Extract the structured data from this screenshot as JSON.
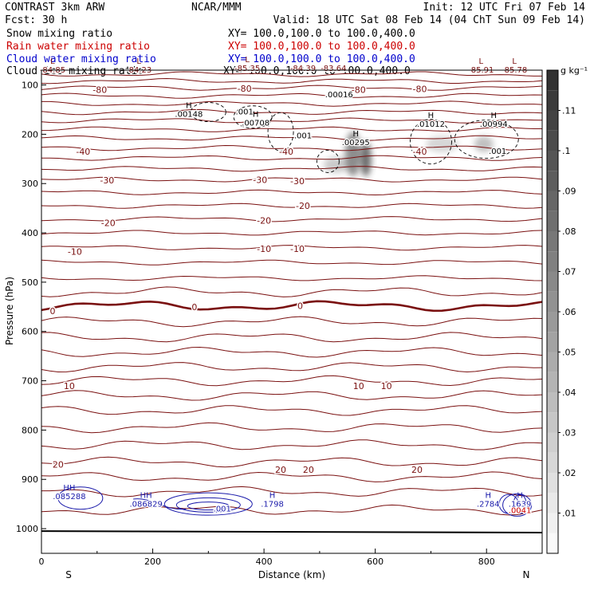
{
  "header": {
    "left1": "CONTRAST  3km ARW",
    "center1": "NCAR/MMM",
    "right1": "Init: 12 UTC Fri 07 Feb 14",
    "left2": "Fcst:   30 h",
    "right2": "Valid: 18 UTC Sat 08 Feb 14 (04 ChT Sun 09 Feb 14)",
    "fields": [
      {
        "name": "Snow mixing ratio",
        "xy": "XY= 100.0,100.0 to 100.0,400.0",
        "color": "#000000"
      },
      {
        "name": "Rain water mixing ratio",
        "xy": "XY= 100.0,100.0 to 100.0,400.0",
        "color": "#cc0000"
      },
      {
        "name": "Cloud water mixing ratio",
        "xy": "XY= 100.0,100.0 to 100.0,400.0",
        "color": "#0000cc"
      },
      {
        "name": "Cloud ice mixing ratio",
        "xy": "XY= 100.0,100.0 to 100.0,400.0",
        "color": "#000000"
      }
    ]
  },
  "colors": {
    "contour": "#7a1010",
    "cloudwater": "#1a1aaa",
    "rain": "#cc0000",
    "snow": "#444444"
  },
  "chart_data": {
    "type": "contour",
    "xlabel": "Distance (km)",
    "ylabel": "Pressure (hPa)",
    "xlim": [
      0,
      900
    ],
    "ylim": [
      1050,
      70
    ],
    "xticks": [
      "0",
      "200",
      "400",
      "600",
      "800"
    ],
    "xtick_values": [
      0,
      200,
      400,
      600,
      800
    ],
    "yticks": [
      "100",
      "200",
      "300",
      "400",
      "500",
      "600",
      "700",
      "800",
      "900",
      "1000"
    ],
    "ytick_values": [
      100,
      200,
      300,
      400,
      500,
      600,
      700,
      800,
      900,
      1000
    ],
    "x_end_labels": {
      "left": "S",
      "right": "N"
    },
    "temperature_contours": [
      {
        "value": -80,
        "p": 78
      },
      {
        "value": -80,
        "p": 92
      },
      {
        "value": -80,
        "p": 106
      },
      {
        "value": -80,
        "p": 122
      },
      {
        "value": -70,
        "p": 138
      },
      {
        "value": -70,
        "p": 155
      },
      {
        "value": -60,
        "p": 172
      },
      {
        "value": -60,
        "p": 190
      },
      {
        "value": -50,
        "p": 208
      },
      {
        "value": -40,
        "p": 228
      },
      {
        "value": -30,
        "p": 248
      },
      {
        "value": -30,
        "p": 270
      },
      {
        "value": -30,
        "p": 292
      },
      {
        "value": -20,
        "p": 318
      },
      {
        "value": -20,
        "p": 345
      },
      {
        "value": -10,
        "p": 372
      },
      {
        "value": -10,
        "p": 400
      },
      {
        "value": -10,
        "p": 430
      },
      {
        "value": -10,
        "p": 460
      },
      {
        "value": -5,
        "p": 492
      },
      {
        "value": -2,
        "p": 520
      },
      {
        "value": 0,
        "p": 548
      },
      {
        "value": 2,
        "p": 580
      },
      {
        "value": 4,
        "p": 612
      },
      {
        "value": 6,
        "p": 642
      },
      {
        "value": 8,
        "p": 672
      },
      {
        "value": 10,
        "p": 700
      },
      {
        "value": 12,
        "p": 730
      },
      {
        "value": 14,
        "p": 760
      },
      {
        "value": 16,
        "p": 795
      },
      {
        "value": 18,
        "p": 830
      },
      {
        "value": 20,
        "p": 865
      },
      {
        "value": 20,
        "p": 895
      },
      {
        "value": 22,
        "p": 925
      },
      {
        "value": 24,
        "p": 962
      }
    ],
    "contour_labels": [
      {
        "text": "-80",
        "x": 105,
        "p": 110
      },
      {
        "text": "-80",
        "x": 365,
        "p": 107
      },
      {
        "text": "-80",
        "x": 570,
        "p": 110
      },
      {
        "text": "-80",
        "x": 680,
        "p": 108
      },
      {
        "text": "-40",
        "x": 75,
        "p": 235
      },
      {
        "text": "-40",
        "x": 440,
        "p": 235
      },
      {
        "text": "-40",
        "x": 680,
        "p": 235
      },
      {
        "text": "-30",
        "x": 118,
        "p": 293
      },
      {
        "text": "-30",
        "x": 393,
        "p": 292
      },
      {
        "text": "-30",
        "x": 460,
        "p": 295
      },
      {
        "text": "-20",
        "x": 120,
        "p": 380
      },
      {
        "text": "-20",
        "x": 400,
        "p": 375
      },
      {
        "text": "-20",
        "x": 470,
        "p": 345
      },
      {
        "text": "-10",
        "x": 60,
        "p": 438
      },
      {
        "text": "-10",
        "x": 400,
        "p": 432
      },
      {
        "text": "-10",
        "x": 460,
        "p": 432
      },
      {
        "text": "0",
        "x": 20,
        "p": 558
      },
      {
        "text": "0",
        "x": 275,
        "p": 550
      },
      {
        "text": "0",
        "x": 465,
        "p": 548
      },
      {
        "text": "10",
        "x": 50,
        "p": 710
      },
      {
        "text": "10",
        "x": 570,
        "p": 710
      },
      {
        "text": "10",
        "x": 620,
        "p": 710
      },
      {
        "text": "20",
        "x": 30,
        "p": 870
      },
      {
        "text": "20",
        "x": 430,
        "p": 880
      },
      {
        "text": "20",
        "x": 480,
        "p": 880
      },
      {
        "text": "20",
        "x": 675,
        "p": 880
      }
    ],
    "extrema_labels": [
      {
        "kind": "L",
        "text": "-84.85",
        "x": 20,
        "p": 75,
        "color": "#7a1010"
      },
      {
        "kind": "L",
        "text": "-84.23",
        "x": 175,
        "p": 75,
        "color": "#7a1010"
      },
      {
        "kind": "L",
        "text": "-85.35",
        "x": 370,
        "p": 72,
        "color": "#7a1010"
      },
      {
        "kind": "",
        "text": "-84.39",
        "x": 470,
        "p": 72,
        "color": "#7a1010"
      },
      {
        "kind": "",
        "text": "-83.64",
        "x": 525,
        "p": 72,
        "color": "#7a1010"
      },
      {
        "kind": "L",
        "text": "-85.91",
        "x": 790,
        "p": 75,
        "color": "#7a1010"
      },
      {
        "kind": "L",
        "text": "-85.78",
        "x": 850,
        "p": 75,
        "color": "#7a1010"
      },
      {
        "kind": "",
        "text": ".001",
        "x": 365,
        "p": 160,
        "color": "#000000"
      },
      {
        "kind": "",
        "text": ".00016",
        "x": 535,
        "p": 125,
        "color": "#000000"
      },
      {
        "kind": "H",
        "text": ".00148",
        "x": 265,
        "p": 165,
        "color": "#000000"
      },
      {
        "kind": "H",
        "text": ".00708",
        "x": 385,
        "p": 182,
        "color": "#000000"
      },
      {
        "kind": "",
        "text": ".001",
        "x": 470,
        "p": 208,
        "color": "#000000"
      },
      {
        "kind": "H",
        "text": ".00295",
        "x": 565,
        "p": 222,
        "color": "#000000"
      },
      {
        "kind": "H",
        "text": ".01012",
        "x": 700,
        "p": 185,
        "color": "#000000"
      },
      {
        "kind": "H",
        "text": ".00994",
        "x": 813,
        "p": 185,
        "color": "#000000"
      },
      {
        "kind": "",
        "text": ".001",
        "x": 820,
        "p": 240,
        "color": "#000000"
      },
      {
        "kind": "HH",
        "text": ".085288",
        "x": 50,
        "p": 940,
        "color": "#1a1aaa"
      },
      {
        "kind": "HH",
        "text": ".086829",
        "x": 188,
        "p": 955,
        "color": "#1a1aaa"
      },
      {
        "kind": "",
        "text": ".001",
        "x": 325,
        "p": 965,
        "color": "#1a1aaa"
      },
      {
        "kind": "H",
        "text": ".1798",
        "x": 415,
        "p": 955,
        "color": "#1a1aaa"
      },
      {
        "kind": "H",
        "text": ".2784",
        "x": 803,
        "p": 955,
        "color": "#1a1aaa"
      },
      {
        "kind": "H",
        "text": ".1639",
        "x": 860,
        "p": 955,
        "color": "#1a1aaa"
      },
      {
        "kind": "",
        "text": ".0041",
        "x": 860,
        "p": 968,
        "color": "#cc0000"
      }
    ],
    "colorbar": {
      "unit": "g kg⁻¹",
      "labels": [
        ".01",
        ".02",
        ".03",
        ".04",
        ".05",
        ".06",
        ".07",
        ".08",
        ".09",
        ".1",
        ".11"
      ],
      "label_values": [
        0.01,
        0.02,
        0.03,
        0.04,
        0.05,
        0.06,
        0.07,
        0.08,
        0.09,
        0.1,
        0.11
      ],
      "range": [
        0,
        0.12
      ]
    }
  }
}
